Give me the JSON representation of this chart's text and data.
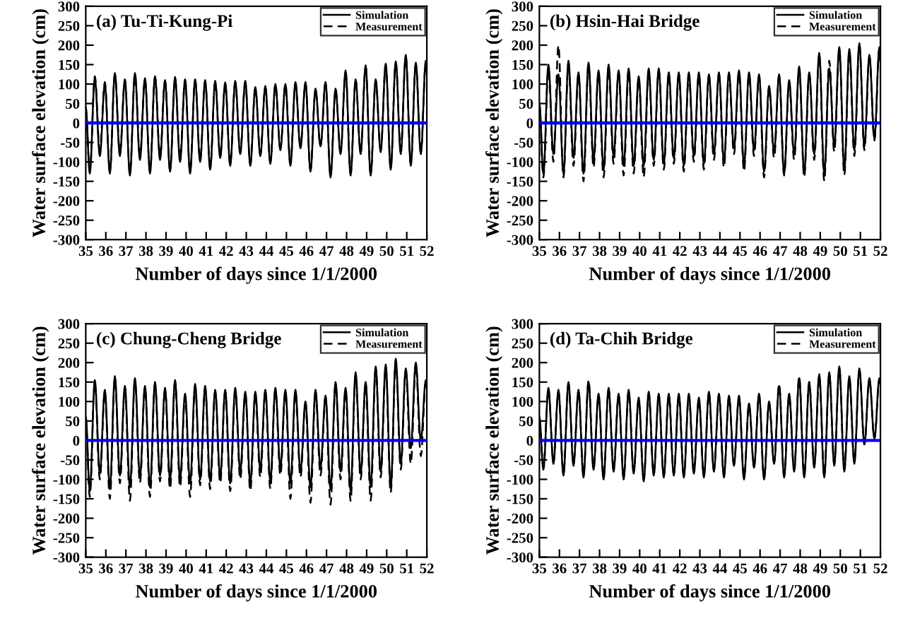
{
  "chart_data": [
    {
      "type": "line",
      "title": "(a) Tu-Ti-Kung-Pi",
      "xlabel": "Number of days since 1/1/2000",
      "ylabel": "Water surface elevation (cm)",
      "xlim": [
        35,
        52
      ],
      "xticks": [
        35,
        36,
        37,
        38,
        39,
        40,
        41,
        42,
        43,
        44,
        45,
        46,
        47,
        48,
        49,
        50,
        51,
        52
      ],
      "ylim": [
        -300,
        300
      ],
      "yticks": [
        -300,
        -250,
        -200,
        -150,
        -100,
        -50,
        0,
        50,
        100,
        150,
        200,
        250,
        300
      ],
      "legend": "top right",
      "ref_lines": [
        {
          "axis": "y",
          "value": 0,
          "color": "#0000ff"
        }
      ],
      "x": [
        35,
        35.2,
        35.45,
        35.7,
        35.95,
        36.2,
        36.45,
        36.7,
        36.95,
        37.2,
        37.45,
        37.7,
        37.95,
        38.2,
        38.45,
        38.7,
        38.95,
        39.2,
        39.45,
        39.7,
        39.95,
        40.2,
        40.45,
        40.7,
        40.95,
        41.2,
        41.45,
        41.7,
        41.95,
        42.2,
        42.45,
        42.7,
        42.95,
        43.2,
        43.45,
        43.7,
        43.95,
        44.2,
        44.45,
        44.7,
        44.95,
        45.2,
        45.45,
        45.7,
        45.95,
        46.2,
        46.45,
        46.7,
        46.95,
        47.2,
        47.45,
        47.7,
        47.95,
        48.2,
        48.45,
        48.7,
        48.95,
        49.2,
        49.45,
        49.7,
        49.95,
        50.2,
        50.45,
        50.7,
        50.95,
        51.2,
        51.45,
        51.7,
        51.95,
        52
      ],
      "series": [
        {
          "name": "Simulation",
          "color": "#000000",
          "line_style": "solid",
          "values": [
            40,
            -130,
            115,
            -85,
            100,
            -130,
            128,
            -85,
            112,
            -135,
            128,
            -95,
            115,
            -130,
            120,
            -95,
            110,
            -125,
            118,
            -100,
            112,
            -130,
            112,
            -100,
            110,
            -120,
            108,
            -90,
            104,
            -110,
            108,
            -80,
            108,
            -110,
            92,
            -85,
            95,
            -105,
            100,
            -70,
            100,
            -110,
            105,
            -65,
            105,
            -125,
            88,
            -60,
            105,
            -140,
            88,
            -80,
            135,
            -135,
            112,
            -80,
            148,
            -135,
            112,
            -75,
            152,
            -120,
            158,
            -80,
            175,
            -110,
            155,
            -80,
            160,
            130
          ]
        },
        {
          "name": "Measurement",
          "color": "#000000",
          "line_style": "dashed",
          "values": [
            35,
            -125,
            120,
            -70,
            105,
            -125,
            125,
            -75,
            110,
            -130,
            125,
            -85,
            112,
            -125,
            118,
            -85,
            108,
            -120,
            115,
            -90,
            110,
            -125,
            110,
            -95,
            108,
            -115,
            105,
            -85,
            100,
            -105,
            105,
            -75,
            105,
            -105,
            90,
            -80,
            92,
            -100,
            98,
            -65,
            98,
            -105,
            102,
            -60,
            102,
            -120,
            85,
            -60,
            102,
            -135,
            85,
            -75,
            130,
            -130,
            110,
            -75,
            145,
            -130,
            110,
            -70,
            150,
            -115,
            155,
            -70,
            170,
            -105,
            150,
            -75,
            155,
            125
          ]
        }
      ]
    },
    {
      "type": "line",
      "title": "(b) Hsin-Hai Bridge",
      "xlabel": "Number of days since 1/1/2000",
      "ylabel": "Water surface elevation (cm)",
      "xlim": [
        35,
        52
      ],
      "xticks": [
        35,
        36,
        37,
        38,
        39,
        40,
        41,
        42,
        43,
        44,
        45,
        46,
        47,
        48,
        49,
        50,
        51,
        52
      ],
      "ylim": [
        -300,
        300
      ],
      "yticks": [
        -300,
        -250,
        -200,
        -150,
        -100,
        -50,
        0,
        50,
        100,
        150,
        200,
        250,
        300
      ],
      "legend": "top right",
      "ref_lines": [
        {
          "axis": "y",
          "value": 0,
          "color": "#0000ff"
        }
      ],
      "x": [
        35,
        35.2,
        35.45,
        35.7,
        35.95,
        36.2,
        36.45,
        36.7,
        36.95,
        37.2,
        37.45,
        37.7,
        37.95,
        38.2,
        38.45,
        38.7,
        38.95,
        39.2,
        39.45,
        39.7,
        39.95,
        40.2,
        40.45,
        40.7,
        40.95,
        41.2,
        41.45,
        41.7,
        41.95,
        42.2,
        42.45,
        42.7,
        42.95,
        43.2,
        43.45,
        43.7,
        43.95,
        44.2,
        44.45,
        44.7,
        44.95,
        45.2,
        45.45,
        45.7,
        45.95,
        46.2,
        46.45,
        46.7,
        46.95,
        47.2,
        47.45,
        47.7,
        47.95,
        48.2,
        48.45,
        48.7,
        48.95,
        49.2,
        49.45,
        49.7,
        49.95,
        50.2,
        50.45,
        50.7,
        50.95,
        51.2,
        51.45,
        51.7,
        51.95,
        52
      ],
      "series": [
        {
          "name": "Simulation",
          "color": "#000000",
          "line_style": "solid",
          "values": [
            50,
            -130,
            150,
            -80,
            125,
            -130,
            160,
            -90,
            130,
            -130,
            155,
            -95,
            135,
            -120,
            150,
            -85,
            135,
            -110,
            140,
            -110,
            120,
            -110,
            140,
            -95,
            140,
            -105,
            130,
            -90,
            130,
            -110,
            130,
            -85,
            130,
            -105,
            125,
            -80,
            130,
            -100,
            130,
            -65,
            135,
            -110,
            130,
            -70,
            125,
            -125,
            95,
            -75,
            125,
            -130,
            110,
            -80,
            145,
            -130,
            130,
            -80,
            180,
            -130,
            140,
            -60,
            195,
            -120,
            190,
            -70,
            205,
            -60,
            175,
            -40,
            195,
            160
          ]
        },
        {
          "name": "Measurement",
          "color": "#000000",
          "line_style": "dashed",
          "values": [
            45,
            -140,
            140,
            -100,
            200,
            -140,
            150,
            -110,
            125,
            -150,
            150,
            -115,
            130,
            -140,
            140,
            -105,
            130,
            -135,
            135,
            -130,
            115,
            -140,
            135,
            -110,
            135,
            -120,
            125,
            -105,
            125,
            -125,
            125,
            -100,
            125,
            -120,
            120,
            -95,
            125,
            -115,
            125,
            -80,
            130,
            -125,
            125,
            -85,
            120,
            -140,
            90,
            -90,
            120,
            -135,
            105,
            -95,
            140,
            -140,
            125,
            -95,
            175,
            -150,
            160,
            -75,
            190,
            -135,
            185,
            -85,
            200,
            -70,
            170,
            -45,
            190,
            155
          ]
        }
      ]
    },
    {
      "type": "line",
      "title": "(c) Chung-Cheng Bridge",
      "xlabel": "Number of days since 1/1/2000",
      "ylabel": "Water surface elevation (cm)",
      "xlim": [
        35,
        52
      ],
      "xticks": [
        35,
        36,
        37,
        38,
        39,
        40,
        41,
        42,
        43,
        44,
        45,
        46,
        47,
        48,
        49,
        50,
        51,
        52
      ],
      "ylim": [
        -300,
        300
      ],
      "yticks": [
        -300,
        -250,
        -200,
        -150,
        -100,
        -50,
        0,
        50,
        100,
        150,
        200,
        250,
        300
      ],
      "legend": "top right",
      "ref_lines": [
        {
          "axis": "y",
          "value": 0,
          "color": "#0000ff"
        }
      ],
      "x": [
        35,
        35.2,
        35.45,
        35.7,
        35.95,
        36.2,
        36.45,
        36.7,
        36.95,
        37.2,
        37.45,
        37.7,
        37.95,
        38.2,
        38.45,
        38.7,
        38.95,
        39.2,
        39.45,
        39.7,
        39.95,
        40.2,
        40.45,
        40.7,
        40.95,
        41.2,
        41.45,
        41.7,
        41.95,
        42.2,
        42.45,
        42.7,
        42.95,
        43.2,
        43.45,
        43.7,
        43.95,
        44.2,
        44.45,
        44.7,
        44.95,
        45.2,
        45.45,
        45.7,
        45.95,
        46.2,
        46.45,
        46.7,
        46.95,
        47.2,
        47.45,
        47.7,
        47.95,
        48.2,
        48.45,
        48.7,
        48.95,
        49.2,
        49.45,
        49.7,
        49.95,
        50.2,
        50.45,
        50.7,
        50.95,
        51.2,
        51.45,
        51.7,
        51.95,
        52
      ],
      "series": [
        {
          "name": "Simulation",
          "color": "#000000",
          "line_style": "solid",
          "values": [
            60,
            -130,
            155,
            -85,
            130,
            -125,
            165,
            -90,
            140,
            -120,
            160,
            -95,
            140,
            -120,
            150,
            -90,
            135,
            -100,
            155,
            -100,
            120,
            -110,
            145,
            -100,
            140,
            -105,
            130,
            -95,
            130,
            -110,
            135,
            -80,
            125,
            -110,
            125,
            -75,
            130,
            -105,
            135,
            -70,
            130,
            -110,
            130,
            -80,
            100,
            -120,
            130,
            -70,
            115,
            -125,
            150,
            -80,
            135,
            -130,
            175,
            -85,
            150,
            -120,
            190,
            -80,
            195,
            -120,
            210,
            -60,
            185,
            -20,
            200,
            0,
            155,
            150
          ]
        },
        {
          "name": "Measurement",
          "color": "#000000",
          "line_style": "dashed",
          "values": [
            55,
            -145,
            150,
            -100,
            125,
            -150,
            160,
            -110,
            135,
            -155,
            155,
            -110,
            135,
            -145,
            145,
            -105,
            130,
            -125,
            150,
            -120,
            115,
            -145,
            140,
            -115,
            135,
            -125,
            125,
            -110,
            125,
            -130,
            130,
            -100,
            120,
            -130,
            120,
            -95,
            125,
            -125,
            130,
            -90,
            125,
            -150,
            125,
            -95,
            95,
            -160,
            125,
            -90,
            110,
            -165,
            145,
            -100,
            130,
            -155,
            170,
            -100,
            145,
            -155,
            185,
            -95,
            190,
            -135,
            205,
            -75,
            180,
            -60,
            195,
            -40,
            150,
            145
          ]
        }
      ]
    },
    {
      "type": "line",
      "title": "(d) Ta-Chih Bridge",
      "xlabel": "Number of days since 1/1/2000",
      "ylabel": "Water surface elevation (cm)",
      "xlim": [
        35,
        52
      ],
      "xticks": [
        35,
        36,
        37,
        38,
        39,
        40,
        41,
        42,
        43,
        44,
        45,
        46,
        47,
        48,
        49,
        50,
        51,
        52
      ],
      "ylim": [
        -300,
        300
      ],
      "yticks": [
        -300,
        -250,
        -200,
        -150,
        -100,
        -50,
        0,
        50,
        100,
        150,
        200,
        250,
        300
      ],
      "legend": "top right",
      "ref_lines": [
        {
          "axis": "y",
          "value": 0,
          "color": "#0000ff"
        }
      ],
      "x": [
        35,
        35.2,
        35.45,
        35.7,
        35.95,
        36.2,
        36.45,
        36.7,
        36.95,
        37.2,
        37.45,
        37.7,
        37.95,
        38.2,
        38.45,
        38.7,
        38.95,
        39.2,
        39.45,
        39.7,
        39.95,
        40.2,
        40.45,
        40.7,
        40.95,
        41.2,
        41.45,
        41.7,
        41.95,
        42.2,
        42.45,
        42.7,
        42.95,
        43.2,
        43.45,
        43.7,
        43.95,
        44.2,
        44.45,
        44.7,
        44.95,
        45.2,
        45.45,
        45.7,
        45.95,
        46.2,
        46.45,
        46.7,
        46.95,
        47.2,
        47.45,
        47.7,
        47.95,
        48.2,
        48.45,
        48.7,
        48.95,
        49.2,
        49.45,
        49.7,
        49.95,
        50.2,
        50.45,
        50.7,
        50.95,
        51.2,
        51.45,
        51.7,
        51.95,
        52
      ],
      "series": [
        {
          "name": "Simulation",
          "color": "#000000",
          "line_style": "solid",
          "values": [
            60,
            -75,
            135,
            -60,
            130,
            -90,
            150,
            -65,
            130,
            -95,
            150,
            -75,
            120,
            -100,
            135,
            -80,
            120,
            -100,
            130,
            -85,
            110,
            -105,
            125,
            -90,
            120,
            -95,
            120,
            -90,
            120,
            -95,
            120,
            -85,
            110,
            -95,
            125,
            -80,
            120,
            -95,
            115,
            -65,
            115,
            -100,
            95,
            -70,
            120,
            -100,
            100,
            -60,
            140,
            -95,
            120,
            -80,
            160,
            -95,
            150,
            -70,
            170,
            -95,
            175,
            -65,
            190,
            -80,
            165,
            -60,
            185,
            -10,
            160,
            5,
            160,
            150
          ]
        },
        {
          "name": "Measurement",
          "color": "#000000",
          "line_style": "dashed",
          "values": [
            55,
            -70,
            130,
            -55,
            125,
            -85,
            145,
            -60,
            125,
            -90,
            155,
            -70,
            115,
            -95,
            130,
            -75,
            115,
            -95,
            125,
            -80,
            105,
            -100,
            120,
            -85,
            115,
            -90,
            115,
            -85,
            115,
            -90,
            115,
            -80,
            105,
            -90,
            120,
            -75,
            115,
            -90,
            110,
            -60,
            110,
            -95,
            90,
            -65,
            115,
            -95,
            95,
            -55,
            145,
            -90,
            115,
            -75,
            165,
            -90,
            150,
            -65,
            165,
            -90,
            170,
            -60,
            185,
            -75,
            160,
            -55,
            180,
            -10,
            155,
            5,
            155,
            145
          ]
        }
      ]
    }
  ]
}
